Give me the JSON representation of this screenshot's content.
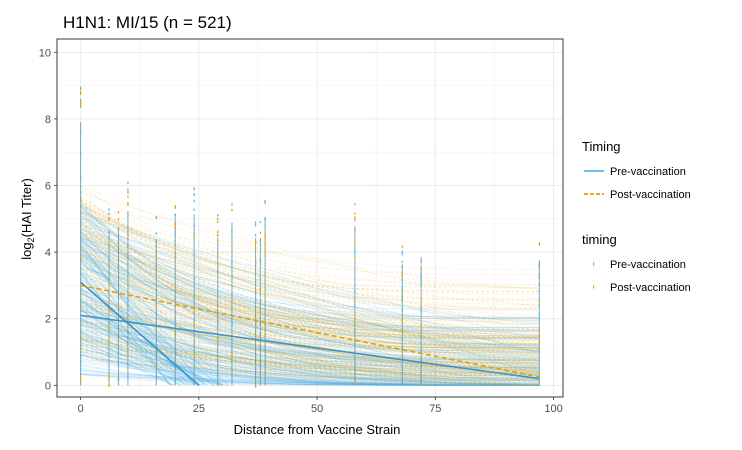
{
  "chart_data": {
    "type": "line",
    "title": "H1N1: MI/15 (n = 521)",
    "xlabel": "Distance from Vaccine Strain",
    "ylabel_main": "log",
    "ylabel_sub": "2",
    "ylabel_rest": "(HAI Titer)",
    "xlim": [
      -5,
      102
    ],
    "ylim": [
      -0.35,
      10.4
    ],
    "x_ticks": [
      0,
      25,
      50,
      75,
      100
    ],
    "y_ticks": [
      0,
      2,
      4,
      6,
      8,
      10
    ],
    "grid": true,
    "strain_distances": [
      0,
      6,
      8,
      10,
      16,
      20,
      24,
      29,
      32,
      37,
      38,
      39,
      58,
      68,
      72,
      97
    ],
    "legends": [
      {
        "title": "Timing",
        "kind": "line",
        "placement": "right",
        "entries": [
          {
            "label": "Pre-vaccination",
            "color": "#56B4E9",
            "dash": "solid"
          },
          {
            "label": "Post-vaccination",
            "color": "#E69F00",
            "dash": "dashed"
          }
        ]
      },
      {
        "title": "timing",
        "kind": "point",
        "placement": "right",
        "entries": [
          {
            "label": "Pre-vaccination",
            "color": "#56B4E9"
          },
          {
            "label": "Post-vaccination",
            "color": "#E69F00"
          }
        ]
      }
    ],
    "series": [
      {
        "name": "Pre-vaccination",
        "color": "#56B4E9",
        "summary_lines": [
          {
            "x": [
              0,
              97
            ],
            "y": [
              2.1,
              0.2
            ]
          },
          {
            "x": [
              0,
              25
            ],
            "y": [
              3.1,
              0
            ]
          }
        ]
      },
      {
        "name": "Post-vaccination",
        "color": "#E69F00",
        "summary_lines": [
          {
            "x": [
              0,
              97
            ],
            "y": [
              3.0,
              0.25
            ]
          }
        ]
      }
    ]
  }
}
